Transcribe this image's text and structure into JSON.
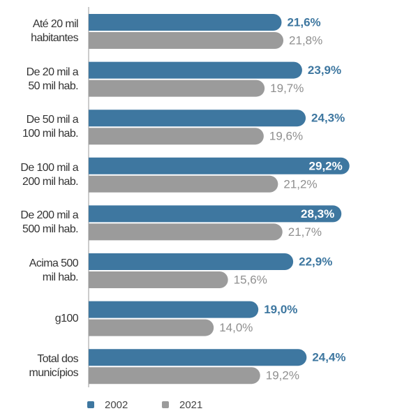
{
  "chart_data": {
    "type": "bar",
    "orientation": "horizontal",
    "categories": [
      "Até 20 mil\nhabitantes",
      "De 20 mil a\n50 mil hab.",
      "De 50 mil a\n100 mil hab.",
      "De 100 mil a\n200 mil hab.",
      "De 200 mil a\n500 mil hab.",
      "Acima 500\nmil hab.",
      "g100",
      "Total dos\nmunicípios"
    ],
    "series": [
      {
        "name": "2002",
        "color": "#3e77a0",
        "values": [
          21.6,
          23.9,
          24.3,
          29.2,
          28.3,
          22.9,
          19.0,
          24.4
        ],
        "value_labels": [
          "21,6%",
          "23,9%",
          "24,3%",
          "29,2%",
          "28,3%",
          "22,9%",
          "19,0%",
          "24,4%"
        ]
      },
      {
        "name": "2021",
        "color": "#9b9b9b",
        "values": [
          21.8,
          19.7,
          19.6,
          21.2,
          21.7,
          15.6,
          14.0,
          19.2
        ],
        "value_labels": [
          "21,8%",
          "19,7%",
          "19,6%",
          "21,2%",
          "21,7%",
          "15,6%",
          "14,0%",
          "19,2%"
        ]
      }
    ],
    "legend": "bottom"
  }
}
